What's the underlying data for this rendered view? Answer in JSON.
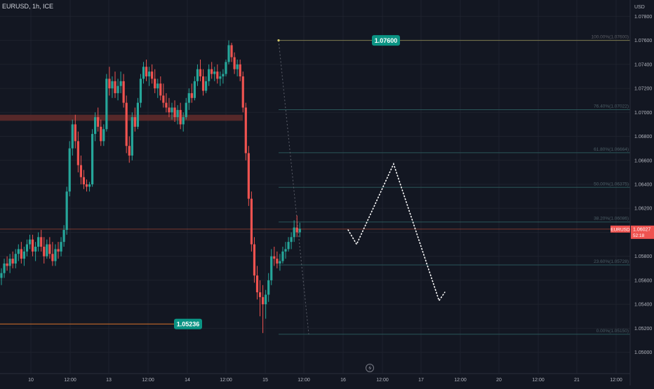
{
  "header": {
    "symbol_info": "EURUSD, 1h, ICE"
  },
  "colors": {
    "background": "#131722",
    "up": "#26a69a",
    "down": "#ef5350",
    "text": "#b2b5be",
    "grid": "#1e222d",
    "fib_line": "#2a5659",
    "fib_top_line": "#7d7a4f",
    "price_line": "#d0533c",
    "supply_zone": "#5e2a2a",
    "label_badge": "#0b9484",
    "current_badge": "#ef5350",
    "low_line": "#d9732a"
  },
  "chart_data": {
    "type": "candlestick",
    "instrument": "EURUSD",
    "timeframe": "1h",
    "exchange": "ICE",
    "currency": "USD",
    "y_axis": {
      "ticks": [
        "1.07800",
        "1.07600",
        "1.07400",
        "1.07200",
        "1.07000",
        "1.06800",
        "1.06600",
        "1.06400",
        "1.06200",
        "1.06000",
        "1.05800",
        "1.05600",
        "1.05400",
        "1.05200",
        "1.05000"
      ],
      "ylim": [
        1.0491,
        1.0789
      ]
    },
    "x_axis": {
      "ticks": [
        "10",
        "12:00",
        "13",
        "12:00",
        "14",
        "12:00",
        "15",
        "12:00",
        "16",
        "12:00",
        "17",
        "12:00",
        "20",
        "12:00",
        "21",
        "12:00"
      ]
    },
    "fibonacci": [
      {
        "label": "100.00%(1.07600)",
        "price": 1.076
      },
      {
        "label": "76.40%(1.07022)",
        "price": 1.07022
      },
      {
        "label": "61.80%(1.06664)",
        "price": 1.06664
      },
      {
        "label": "50.00%(1.06375)",
        "price": 1.06375
      },
      {
        "label": "38.20%(1.06086)",
        "price": 1.06086
      },
      {
        "label": "23.60%(1.05728)",
        "price": 1.05728
      },
      {
        "label": "0.00%(1.05150)",
        "price": 1.0515
      }
    ],
    "price_labels": [
      {
        "text": "1.07600",
        "price": 1.076
      },
      {
        "text": "1.05236",
        "price": 1.05236
      }
    ],
    "current_price": {
      "symbol": "EURUSD",
      "price": "1.06027",
      "countdown": "52:18",
      "value": 1.06027
    },
    "supply_zone": {
      "from_price": 1.0693,
      "to_price": 1.0698
    },
    "projection": [
      {
        "bar": 122,
        "price": 1.0602
      },
      {
        "bar": 125,
        "price": 1.059
      },
      {
        "bar": 138,
        "price": 1.0657
      },
      {
        "bar": 154,
        "price": 1.0543
      },
      {
        "bar": 156,
        "price": 1.055
      }
    ],
    "candles": [
      [
        1.0562,
        1.057,
        1.0556,
        1.0566
      ],
      [
        1.0566,
        1.0578,
        1.0562,
        1.0574
      ],
      [
        1.0574,
        1.058,
        1.0568,
        1.0572
      ],
      [
        1.0572,
        1.0582,
        1.0566,
        1.0578
      ],
      [
        1.0578,
        1.0584,
        1.057,
        1.0574
      ],
      [
        1.0574,
        1.0586,
        1.057,
        1.0582
      ],
      [
        1.0582,
        1.059,
        1.0576,
        1.0586
      ],
      [
        1.0586,
        1.0592,
        1.0574,
        1.0578
      ],
      [
        1.0578,
        1.0588,
        1.0572,
        1.0584
      ],
      [
        1.0584,
        1.0594,
        1.058,
        1.059
      ],
      [
        1.059,
        1.0598,
        1.0586,
        1.0594
      ],
      [
        1.0594,
        1.0598,
        1.058,
        1.0584
      ],
      [
        1.0584,
        1.0592,
        1.0576,
        1.0588
      ],
      [
        1.0588,
        1.06,
        1.0584,
        1.0596
      ],
      [
        1.0596,
        1.0602,
        1.0584,
        1.0588
      ],
      [
        1.0588,
        1.0596,
        1.0574,
        1.058
      ],
      [
        1.058,
        1.0594,
        1.0578,
        1.059
      ],
      [
        1.059,
        1.0596,
        1.0578,
        1.0582
      ],
      [
        1.0582,
        1.0592,
        1.0572,
        1.0576
      ],
      [
        1.0576,
        1.059,
        1.0572,
        1.0586
      ],
      [
        1.0586,
        1.0592,
        1.0578,
        1.0584
      ],
      [
        1.0584,
        1.0596,
        1.058,
        1.0592
      ],
      [
        1.0592,
        1.0606,
        1.0588,
        1.0602
      ],
      [
        1.0602,
        1.0638,
        1.0598,
        1.0634
      ],
      [
        1.0634,
        1.0676,
        1.063,
        1.067
      ],
      [
        1.067,
        1.0694,
        1.0664,
        1.069
      ],
      [
        1.069,
        1.0698,
        1.067,
        1.0676
      ],
      [
        1.0676,
        1.0684,
        1.065,
        1.0656
      ],
      [
        1.0656,
        1.0664,
        1.064,
        1.0646
      ],
      [
        1.0646,
        1.0652,
        1.0636,
        1.064
      ],
      [
        1.064,
        1.0644,
        1.0634,
        1.0638
      ],
      [
        1.0638,
        1.0642,
        1.0634,
        1.064
      ],
      [
        1.064,
        1.0686,
        1.0638,
        1.0682
      ],
      [
        1.0682,
        1.07,
        1.0676,
        1.0696
      ],
      [
        1.0696,
        1.0704,
        1.0684,
        1.0688
      ],
      [
        1.0688,
        1.0694,
        1.0672,
        1.0676
      ],
      [
        1.0676,
        1.069,
        1.0672,
        1.0686
      ],
      [
        1.0686,
        1.0732,
        1.0684,
        1.0728
      ],
      [
        1.0728,
        1.0738,
        1.0714,
        1.072
      ],
      [
        1.072,
        1.073,
        1.0712,
        1.0726
      ],
      [
        1.0726,
        1.0734,
        1.0712,
        1.0716
      ],
      [
        1.0716,
        1.0728,
        1.071,
        1.0722
      ],
      [
        1.0722,
        1.0734,
        1.0716,
        1.0726
      ],
      [
        1.0726,
        1.0732,
        1.0704,
        1.0708
      ],
      [
        1.0708,
        1.0714,
        1.0666,
        1.0672
      ],
      [
        1.0672,
        1.068,
        1.0658,
        1.0664
      ],
      [
        1.0664,
        1.07,
        1.066,
        1.0696
      ],
      [
        1.0696,
        1.0704,
        1.0684,
        1.0688
      ],
      [
        1.0688,
        1.0712,
        1.0686,
        1.0708
      ],
      [
        1.0708,
        1.0732,
        1.0704,
        1.0728
      ],
      [
        1.0728,
        1.0742,
        1.0724,
        1.0738
      ],
      [
        1.0738,
        1.0744,
        1.0726,
        1.073
      ],
      [
        1.073,
        1.0738,
        1.0722,
        1.0734
      ],
      [
        1.0734,
        1.074,
        1.0724,
        1.0728
      ],
      [
        1.0728,
        1.0736,
        1.0716,
        1.072
      ],
      [
        1.072,
        1.0728,
        1.0712,
        1.0724
      ],
      [
        1.0724,
        1.073,
        1.071,
        1.0714
      ],
      [
        1.0714,
        1.0724,
        1.0704,
        1.0708
      ],
      [
        1.0708,
        1.0716,
        1.07,
        1.0704
      ],
      [
        1.0704,
        1.0712,
        1.0696,
        1.07
      ],
      [
        1.07,
        1.0708,
        1.0694,
        1.0704
      ],
      [
        1.0704,
        1.071,
        1.0692,
        1.0696
      ],
      [
        1.0696,
        1.0706,
        1.069,
        1.0702
      ],
      [
        1.0702,
        1.0708,
        1.0686,
        1.069
      ],
      [
        1.069,
        1.07,
        1.0684,
        1.0696
      ],
      [
        1.0696,
        1.0712,
        1.0694,
        1.0708
      ],
      [
        1.0708,
        1.072,
        1.0702,
        1.0716
      ],
      [
        1.0716,
        1.0724,
        1.0708,
        1.0712
      ],
      [
        1.0712,
        1.073,
        1.071,
        1.0726
      ],
      [
        1.0726,
        1.074,
        1.0722,
        1.0736
      ],
      [
        1.0736,
        1.0744,
        1.0726,
        1.073
      ],
      [
        1.073,
        1.0736,
        1.0714,
        1.0718
      ],
      [
        1.0718,
        1.073,
        1.0716,
        1.0726
      ],
      [
        1.0726,
        1.074,
        1.0722,
        1.0736
      ],
      [
        1.0736,
        1.0742,
        1.0728,
        1.0732
      ],
      [
        1.0732,
        1.0738,
        1.0726,
        1.0734
      ],
      [
        1.0734,
        1.074,
        1.0724,
        1.0728
      ],
      [
        1.0728,
        1.0734,
        1.0722,
        1.073
      ],
      [
        1.073,
        1.0736,
        1.0724,
        1.0732
      ],
      [
        1.0732,
        1.0744,
        1.073,
        1.0742
      ],
      [
        1.0742,
        1.076,
        1.074,
        1.0756
      ],
      [
        1.0756,
        1.0758,
        1.0742,
        1.0746
      ],
      [
        1.0746,
        1.075,
        1.0732,
        1.0736
      ],
      [
        1.0736,
        1.0744,
        1.073,
        1.074
      ],
      [
        1.074,
        1.0744,
        1.0726,
        1.073
      ],
      [
        1.073,
        1.0734,
        1.07,
        1.0704
      ],
      [
        1.0704,
        1.0708,
        1.066,
        1.0666
      ],
      [
        1.0666,
        1.0672,
        1.0622,
        1.0628
      ],
      [
        1.0628,
        1.0634,
        1.0584,
        1.059
      ],
      [
        1.059,
        1.0596,
        1.0558,
        1.0564
      ],
      [
        1.0564,
        1.0572,
        1.0544,
        1.055
      ],
      [
        1.055,
        1.056,
        1.053,
        1.0546
      ],
      [
        1.0546,
        1.0556,
        1.0516,
        1.054
      ],
      [
        1.054,
        1.0552,
        1.0528,
        1.0548
      ],
      [
        1.0548,
        1.0566,
        1.0542,
        1.056
      ],
      [
        1.056,
        1.0586,
        1.0556,
        1.058
      ],
      [
        1.058,
        1.0588,
        1.0572,
        1.0578
      ],
      [
        1.0578,
        1.0584,
        1.057,
        1.0574
      ],
      [
        1.0574,
        1.0582,
        1.0568,
        1.0576
      ],
      [
        1.0576,
        1.0588,
        1.0574,
        1.0584
      ],
      [
        1.0584,
        1.0592,
        1.0578,
        1.0586
      ],
      [
        1.0586,
        1.0596,
        1.0584,
        1.0592
      ],
      [
        1.0592,
        1.06,
        1.0586,
        1.0596
      ],
      [
        1.0596,
        1.061,
        1.0592,
        1.0604
      ],
      [
        1.0604,
        1.0614,
        1.0596,
        1.06
      ],
      [
        1.06,
        1.0608,
        1.0596,
        1.0603
      ]
    ]
  }
}
